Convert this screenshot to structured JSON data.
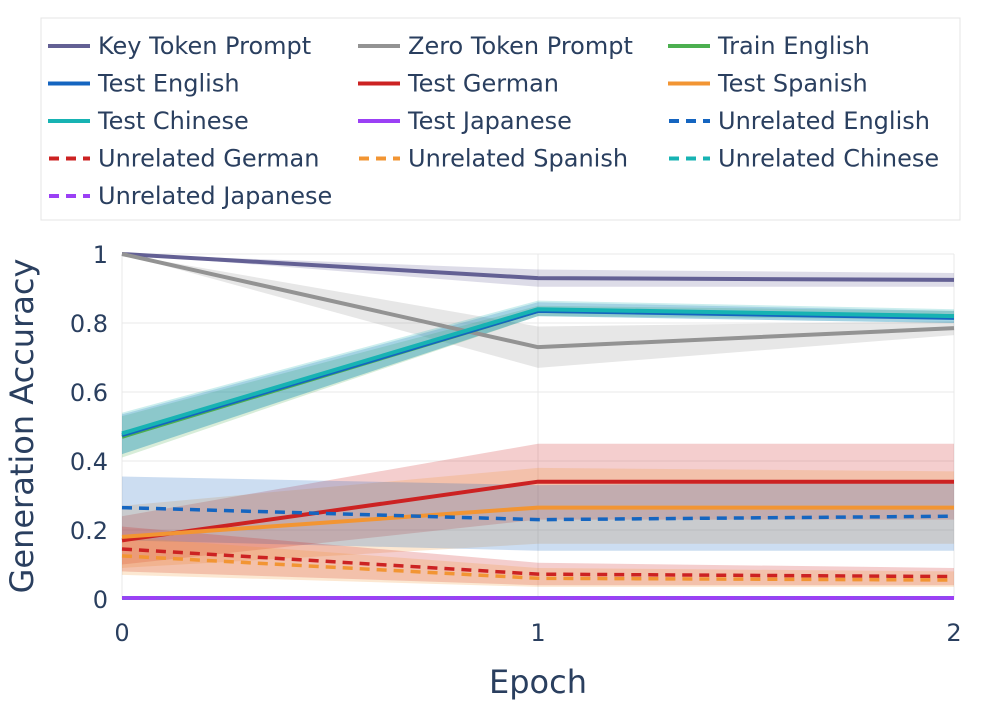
{
  "chart_data": {
    "type": "line",
    "title": "",
    "xlabel": "Epoch",
    "ylabel": "Generation Accuracy",
    "x": [
      0,
      1,
      2
    ],
    "xlim": [
      0,
      2
    ],
    "ylim": [
      0,
      1
    ],
    "x_ticks": [
      "0",
      "1",
      "2"
    ],
    "y_ticks": [
      "0",
      "0.2",
      "0.4",
      "0.6",
      "0.8",
      "1"
    ],
    "grid": true,
    "legend_position": "top",
    "series": [
      {
        "name": "Key Token Prompt",
        "color": "#636094",
        "dash": "solid",
        "values": [
          1.0,
          0.93,
          0.925
        ],
        "lower": [
          1.0,
          0.905,
          0.905
        ],
        "upper": [
          1.0,
          0.955,
          0.945
        ]
      },
      {
        "name": "Zero Token Prompt",
        "color": "#939393",
        "dash": "solid",
        "values": [
          1.0,
          0.73,
          0.785
        ],
        "lower": [
          1.0,
          0.67,
          0.765
        ],
        "upper": [
          1.0,
          0.79,
          0.805
        ]
      },
      {
        "name": "Train English",
        "color": "#4caf50",
        "dash": "solid",
        "values": [
          0.47,
          0.835,
          0.82
        ],
        "lower": [
          0.41,
          0.82,
          0.81
        ],
        "upper": [
          0.53,
          0.85,
          0.835
        ]
      },
      {
        "name": "Test English",
        "color": "#1565c0",
        "dash": "solid",
        "values": [
          0.475,
          0.835,
          0.815
        ],
        "lower": [
          0.42,
          0.82,
          0.8
        ],
        "upper": [
          0.535,
          0.86,
          0.835
        ]
      },
      {
        "name": "Test German",
        "color": "#cc2222",
        "dash": "solid",
        "values": [
          0.17,
          0.34,
          0.34
        ],
        "lower": [
          0.1,
          0.23,
          0.23
        ],
        "upper": [
          0.24,
          0.45,
          0.45
        ]
      },
      {
        "name": "Test Spanish",
        "color": "#f29533",
        "dash": "solid",
        "values": [
          0.18,
          0.265,
          0.265
        ],
        "lower": [
          0.09,
          0.16,
          0.16
        ],
        "upper": [
          0.27,
          0.38,
          0.37
        ]
      },
      {
        "name": "Test Chinese",
        "color": "#17b3b3",
        "dash": "solid",
        "values": [
          0.48,
          0.84,
          0.82
        ],
        "lower": [
          0.42,
          0.82,
          0.8
        ],
        "upper": [
          0.54,
          0.865,
          0.84
        ]
      },
      {
        "name": "Test Japanese",
        "color": "#9b40f5",
        "dash": "solid",
        "values": [
          0.003,
          0.003,
          0.003
        ],
        "lower": [
          0.0,
          0.0,
          0.0
        ],
        "upper": [
          0.006,
          0.006,
          0.006
        ]
      },
      {
        "name": "Unrelated English",
        "color": "#1565c0",
        "dash": "dash",
        "values": [
          0.265,
          0.23,
          0.24
        ],
        "lower": [
          0.17,
          0.14,
          0.14
        ],
        "upper": [
          0.355,
          0.33,
          0.34
        ]
      },
      {
        "name": "Unrelated German",
        "color": "#cc2222",
        "dash": "dash",
        "values": [
          0.145,
          0.072,
          0.065
        ],
        "lower": [
          0.08,
          0.04,
          0.04
        ],
        "upper": [
          0.21,
          0.105,
          0.09
        ]
      },
      {
        "name": "Unrelated Spanish",
        "color": "#f29533",
        "dash": "dash",
        "values": [
          0.125,
          0.06,
          0.055
        ],
        "lower": [
          0.07,
          0.035,
          0.035
        ],
        "upper": [
          0.18,
          0.09,
          0.08
        ]
      },
      {
        "name": "Unrelated Chinese",
        "color": "#17b3b3",
        "dash": "dash",
        "values": [
          0.003,
          0.003,
          0.003
        ],
        "lower": [
          0.0,
          0.0,
          0.0
        ],
        "upper": [
          0.006,
          0.006,
          0.006
        ]
      },
      {
        "name": "Unrelated Japanese",
        "color": "#9b40f5",
        "dash": "dash",
        "values": [
          0.003,
          0.003,
          0.003
        ],
        "lower": [
          0.0,
          0.0,
          0.0
        ],
        "upper": [
          0.006,
          0.006,
          0.006
        ]
      }
    ]
  }
}
